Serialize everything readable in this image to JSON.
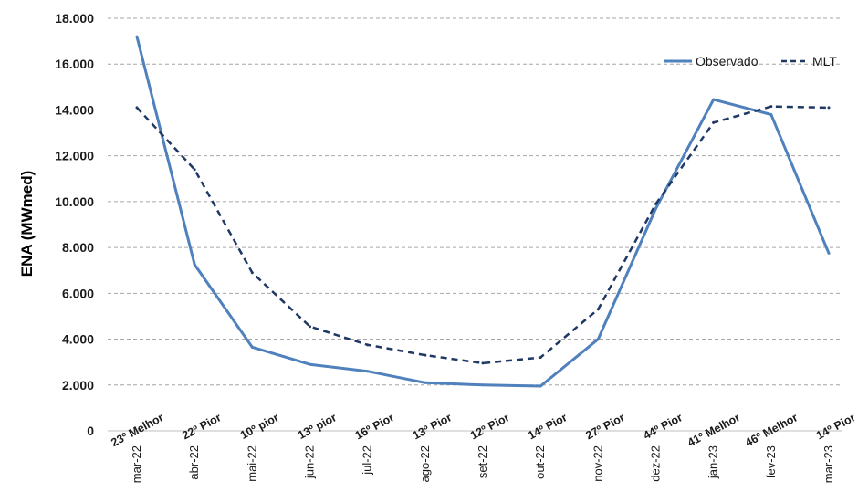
{
  "chart_data": {
    "type": "line",
    "title": "",
    "xlabel": "",
    "ylabel": "ENA (MWmed)",
    "ylim": [
      0,
      18000
    ],
    "y_ticks": [
      0,
      2000,
      4000,
      6000,
      8000,
      10000,
      12000,
      14000,
      16000,
      18000
    ],
    "y_tick_labels": [
      "0",
      "2.000",
      "4.000",
      "6.000",
      "8.000",
      "10.000",
      "12.000",
      "14.000",
      "16.000",
      "18.000"
    ],
    "categories": [
      "mar-22",
      "abr-22",
      "mai-22",
      "jun-22",
      "jul-22",
      "ago-22",
      "set-22",
      "out-22",
      "nov-22",
      "dez-22",
      "jan-23",
      "fev-23",
      "mar-23"
    ],
    "rank_labels": [
      "23º Melhor",
      "22º Pior",
      "10º pior",
      "13º pior",
      "16º Pior",
      "13º Pior",
      "12º Pior",
      "14º Pior",
      "27º Pior",
      "44º Pior",
      "41º Melhor",
      "46º Melhor",
      "14º Pior"
    ],
    "series": [
      {
        "name": "Observado",
        "style": "solid",
        "color": "#4f81bd",
        "values": [
          17200,
          7250,
          3650,
          2900,
          2600,
          2100,
          2000,
          1950,
          4000,
          9700,
          14450,
          13800,
          7750
        ]
      },
      {
        "name": "MLT",
        "style": "dashed",
        "color": "#1f3864",
        "values": [
          14100,
          11400,
          6900,
          4550,
          3750,
          3300,
          2950,
          3200,
          5300,
          9900,
          13450,
          14150,
          14100
        ]
      }
    ],
    "grid": "horizontal-dashed",
    "legend_position": "top-right"
  }
}
